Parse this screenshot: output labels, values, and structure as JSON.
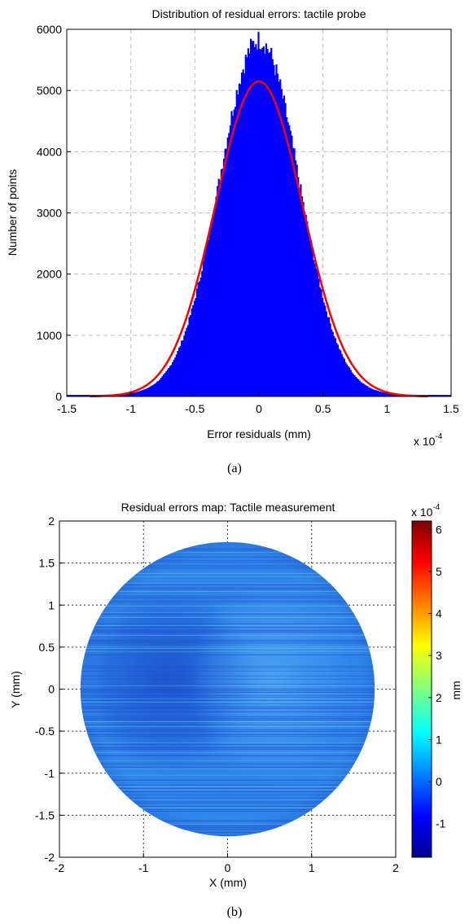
{
  "chart_data": [
    {
      "type": "histogram",
      "title": "Distribution of residual errors: tactile probe",
      "xlabel": "Error residuals (mm)",
      "ylabel": "Number of points",
      "x_multiplier": "x 10",
      "x_multiplier_exp": "-4",
      "xlim": [
        -1.5,
        1.5
      ],
      "ylim": [
        0,
        6000
      ],
      "xticks": [
        -1.5,
        -1,
        -0.5,
        0,
        0.5,
        1,
        1.5
      ],
      "xtick_labels": [
        "-1.5",
        "-1",
        "-0.5",
        "0",
        "0.5",
        "1",
        "1.5"
      ],
      "yticks": [
        0,
        1000,
        2000,
        3000,
        4000,
        5000,
        6000
      ],
      "ytick_labels": [
        "0",
        "1000",
        "2000",
        "3000",
        "4000",
        "5000",
        "6000"
      ],
      "grid": true,
      "histogram": {
        "color": "#0000ff",
        "center": 0.0,
        "sigma": 0.31,
        "peak": 5800,
        "bins": 300
      },
      "fit_curve": {
        "color": "#ff0000",
        "mean": 0.0,
        "sigma": 0.34,
        "peak": 5150,
        "x_range": [
          -1.32,
          1.32
        ]
      },
      "caption": "(a)"
    },
    {
      "type": "heatmap",
      "title": "Residual errors map: Tactile measurement",
      "xlabel": "X (mm)",
      "ylabel": "Y (mm)",
      "xlim": [
        -2,
        2
      ],
      "ylim": [
        -2,
        2
      ],
      "xticks": [
        -2,
        -1,
        0,
        1,
        2
      ],
      "xtick_labels": [
        "-2",
        "-1",
        "0",
        "1",
        "2"
      ],
      "yticks": [
        -2,
        -1.5,
        -1,
        -0.5,
        0,
        0.5,
        1,
        1.5,
        2
      ],
      "ytick_labels": [
        "-2",
        "-1.5",
        "-1",
        "-0.5",
        "0",
        "0.5",
        "1",
        "1.5",
        "2"
      ],
      "grid": true,
      "disk_radius": 1.75,
      "colorbar": {
        "label": "mm",
        "multiplier": "x 10",
        "multiplier_exp": "-4",
        "range": [
          -1.8,
          6.2
        ],
        "ticks": [
          -1,
          0,
          1,
          2,
          3,
          4,
          5,
          6
        ],
        "tick_labels": [
          "-1",
          "0",
          "1",
          "2",
          "3",
          "4",
          "5",
          "6"
        ],
        "colormap": "jet"
      },
      "caption": "(b)"
    }
  ]
}
